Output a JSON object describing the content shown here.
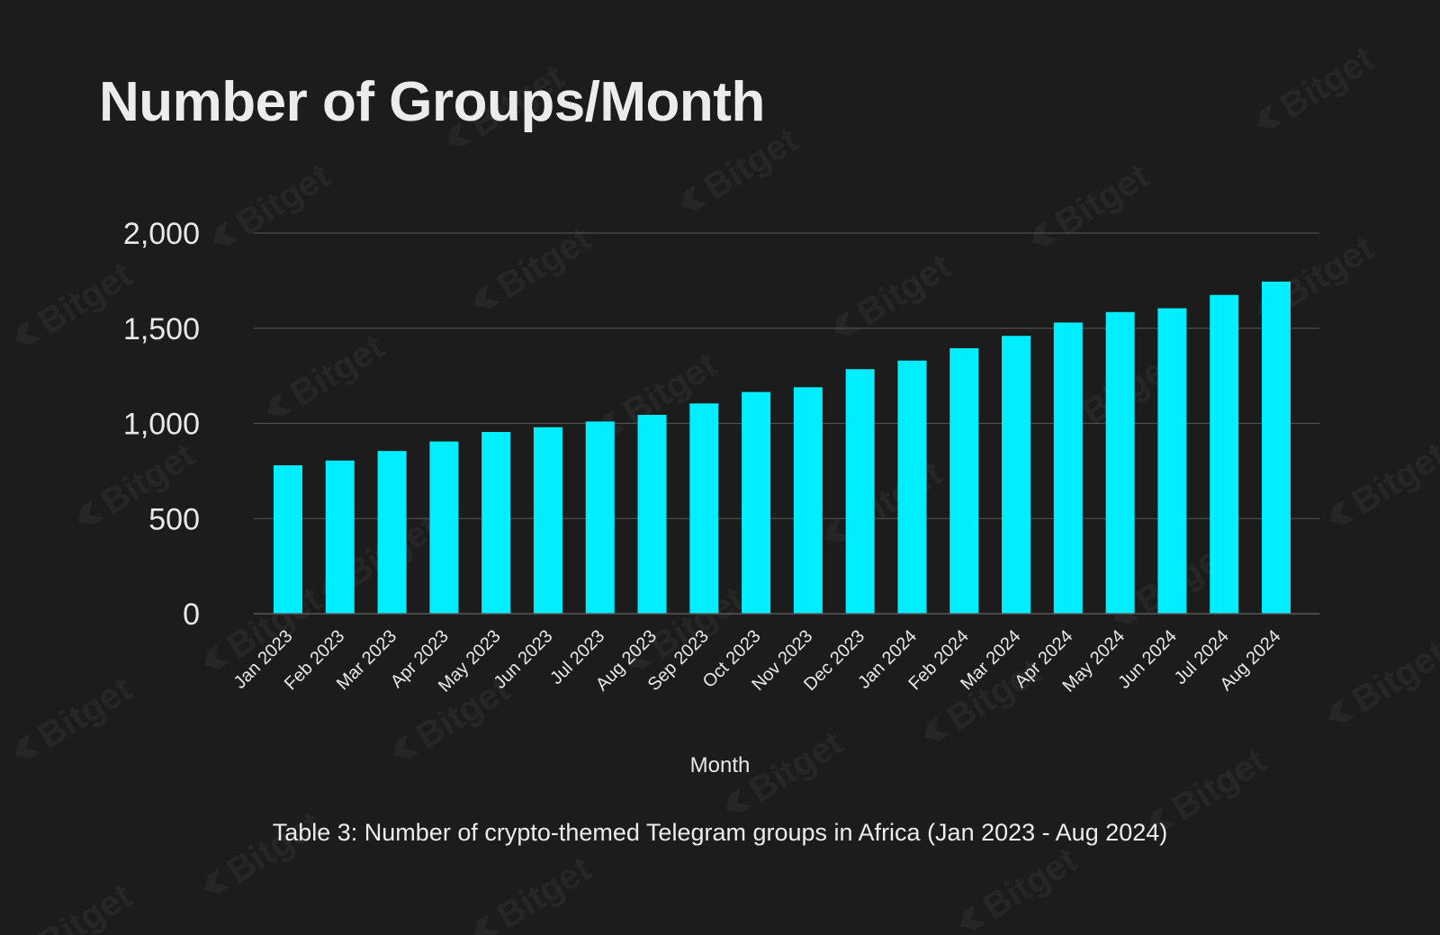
{
  "chart_data": {
    "type": "bar",
    "title": "Number of Groups/Month",
    "xlabel": "Month",
    "ylabel": "",
    "caption": "Table 3: Number of crypto-themed Telegram groups in Africa (Jan 2023 - Aug 2024)",
    "watermark": "Bitget",
    "ylim": [
      0,
      2000
    ],
    "yticks": [
      0,
      500,
      1000,
      1500,
      2000
    ],
    "ytick_labels": [
      "0",
      "500",
      "1,000",
      "1,500",
      "2,000"
    ],
    "grid": true,
    "bar_color": "#00eeff",
    "categories": [
      "Jan 2023",
      "Feb 2023",
      "Mar 2023",
      "Apr 2023",
      "May 2023",
      "Jun 2023",
      "Jul 2023",
      "Aug 2023",
      "Sep 2023",
      "Oct 2023",
      "Nov 2023",
      "Dec 2023",
      "Jan 2024",
      "Feb 2024",
      "Mar 2024",
      "Apr 2024",
      "May 2024",
      "Jun 2024",
      "Jul 2024",
      "Aug 2024"
    ],
    "values": [
      780,
      805,
      855,
      905,
      955,
      980,
      1010,
      1045,
      1105,
      1165,
      1190,
      1285,
      1330,
      1395,
      1460,
      1530,
      1585,
      1605,
      1675,
      1745
    ]
  }
}
